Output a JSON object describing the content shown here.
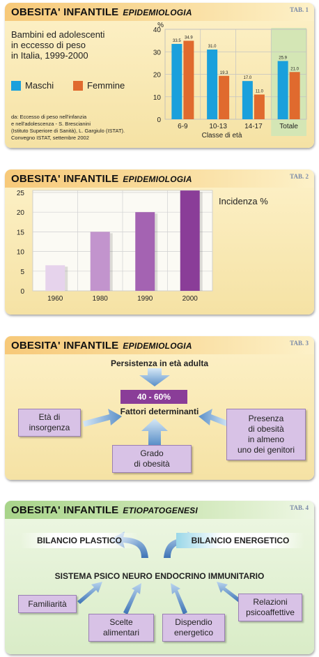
{
  "colors": {
    "maschi": "#1aa0dc",
    "femmine": "#e06a2e",
    "purple": "#8a3d98",
    "box": "#d8c2e6"
  },
  "panel1": {
    "title": "OBESITA' INFANTILE",
    "subtitle": "EPIDEMIOLOGIA",
    "tab": "TAB. 1",
    "desc": [
      "Bambini ed adolescenti",
      "in eccesso di peso",
      "in Italia, 1999-2000"
    ],
    "legend_maschi": "Maschi",
    "legend_femmine": "Femmine",
    "source": [
      "da: Eccesso di peso nell'infanzia",
      "e nell'adolescenza - S. Brescianini",
      "(Istituto Superiore di Sanità), L. Gargiulo (ISTAT).",
      "Convegno ISTAT, settembre 2002"
    ],
    "yunit": "%"
  },
  "panel2": {
    "title": "OBESITA' INFANTILE",
    "subtitle": "EPIDEMIOLOGIA",
    "tab": "TAB. 2",
    "label": "Incidenza %"
  },
  "panel3": {
    "title": "OBESITA' INFANTILE",
    "subtitle": "EPIDEMIOLOGIA",
    "tab": "TAB. 3",
    "persistenza": "Persistenza in età adulta",
    "range": "40 - 60%",
    "fattori": "Fattori determinanti",
    "box_eta": [
      "Età di",
      "insorgenza"
    ],
    "box_grado": [
      "Grado",
      "di obesità"
    ],
    "box_presenza": [
      "Presenza",
      "di obesità",
      "in almeno",
      "uno dei genitori"
    ]
  },
  "panel4": {
    "title": "OBESITA' INFANTILE",
    "subtitle": "ETIOPATOGENESI",
    "tab": "TAB. 4",
    "plastico": "BILANCIO PLASTICO",
    "energetico": "BILANCIO ENERGETICO",
    "sistema": "SISTEMA PSICO NEURO ENDOCRINO IMMUNITARIO",
    "familiarita": "Familiarità",
    "scelte": [
      "Scelte",
      "alimentari"
    ],
    "dispendio": [
      "Dispendio",
      "energetico"
    ],
    "relazioni": [
      "Relazioni",
      "psicoaffettive"
    ]
  },
  "chart_data": [
    {
      "type": "bar",
      "categories": [
        "6-9",
        "10-13",
        "14-17",
        "Totale"
      ],
      "xlabel": "Classe di età",
      "ylabel": "%",
      "ylim": [
        0,
        40
      ],
      "yticks": [
        "0",
        "10",
        "20",
        "30",
        "40"
      ],
      "series": [
        {
          "name": "Maschi",
          "values": [
            33.5,
            31.0,
            17.0,
            25.9
          ],
          "labels": [
            "33.5",
            "31.0",
            "17.0",
            "25.9"
          ]
        },
        {
          "name": "Femmine",
          "values": [
            34.9,
            19.3,
            11.0,
            21.0
          ],
          "labels": [
            "34.9",
            "19.3",
            "11.0",
            "21.0"
          ]
        }
      ],
      "highlight": "Totale",
      "grid": true
    },
    {
      "type": "bar",
      "categories": [
        "1960",
        "1980",
        "1990",
        "2000"
      ],
      "values": [
        6.5,
        15,
        20,
        25.5
      ],
      "ylabel": "Incidenza %",
      "ylim": [
        0,
        25
      ],
      "yticks": [
        "0",
        "5",
        "10",
        "15",
        "20",
        "25"
      ],
      "bar_colors": [
        "#e6d3ec",
        "#c294cd",
        "#a463b2",
        "#8a3d98"
      ],
      "grid": true
    }
  ]
}
